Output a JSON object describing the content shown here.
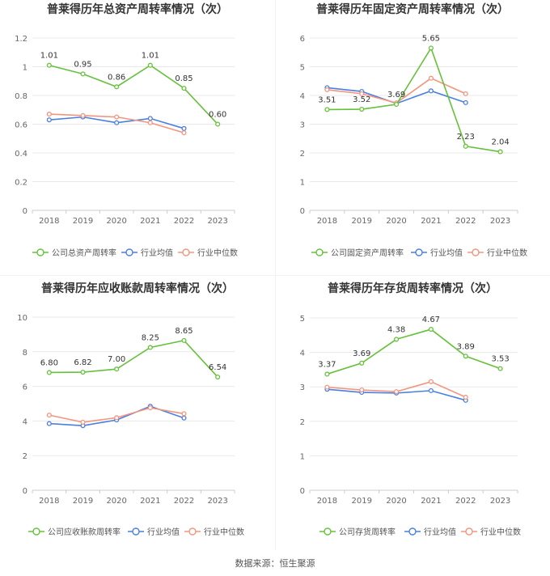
{
  "colors": {
    "company": "#66c13a",
    "average": "#4a7fe0",
    "median": "#f2957e",
    "axis_text": "#666666",
    "grid": "#e9e9e9",
    "title": "#333333"
  },
  "legend_labels": [
    "行业均值",
    "行业中位数"
  ],
  "source": "数据来源：恒生聚源",
  "chart_data": [
    {
      "type": "line",
      "title": "普莱得历年总资产周转率情况（次）",
      "categories": [
        "2018",
        "2019",
        "2020",
        "2021",
        "2022",
        "2023"
      ],
      "ylim": [
        0,
        1.2
      ],
      "yticks": [
        "0",
        "0.2",
        "0.4",
        "0.6",
        "0.8",
        "1",
        "1.2"
      ],
      "grid": true,
      "legend": "bottom",
      "series": [
        {
          "name": "公司总资产周转率",
          "values": [
            1.01,
            0.95,
            0.86,
            1.01,
            0.85,
            0.6
          ],
          "labels": [
            "1.01",
            "0.95",
            "0.86",
            "1.01",
            "0.85",
            "0.60"
          ]
        },
        {
          "name": "行业均值",
          "values": [
            0.63,
            0.65,
            0.61,
            0.64,
            0.57,
            null
          ]
        },
        {
          "name": "行业中位数",
          "values": [
            0.67,
            0.66,
            0.65,
            0.61,
            0.54,
            null
          ]
        }
      ]
    },
    {
      "type": "line",
      "title": "普莱得历年固定资产周转率情况（次）",
      "categories": [
        "2018",
        "2019",
        "2020",
        "2021",
        "2022",
        "2023"
      ],
      "ylim": [
        0,
        6
      ],
      "yticks": [
        "0",
        "1",
        "2",
        "3",
        "4",
        "5",
        "6"
      ],
      "grid": true,
      "legend": "bottom",
      "series": [
        {
          "name": "公司固定资产周转率",
          "values": [
            3.51,
            3.52,
            3.69,
            5.65,
            2.23,
            2.04
          ],
          "labels": [
            "3.51",
            "3.52",
            "3.69",
            "5.65",
            "2.23",
            "2.04"
          ]
        },
        {
          "name": "行业均值",
          "values": [
            4.27,
            4.14,
            3.72,
            4.16,
            3.75,
            null
          ]
        },
        {
          "name": "行业中位数",
          "values": [
            4.2,
            4.06,
            3.74,
            4.6,
            4.06,
            null
          ]
        }
      ]
    },
    {
      "type": "line",
      "title": "普莱得历年应收账款周转率情况（次）",
      "categories": [
        "2018",
        "2019",
        "2020",
        "2021",
        "2022",
        "2023"
      ],
      "ylim": [
        0,
        10
      ],
      "yticks": [
        "0",
        "2",
        "4",
        "6",
        "8",
        "10"
      ],
      "grid": true,
      "legend": "bottom",
      "series": [
        {
          "name": "公司应收账款周转率",
          "values": [
            6.8,
            6.82,
            7.0,
            8.25,
            8.65,
            6.54
          ],
          "labels": [
            "6.80",
            "6.82",
            "7.00",
            "8.25",
            "8.65",
            "6.54"
          ]
        },
        {
          "name": "行业均值",
          "values": [
            3.85,
            3.73,
            4.06,
            4.85,
            4.17,
            null
          ]
        },
        {
          "name": "行业中位数",
          "values": [
            4.34,
            3.93,
            4.19,
            4.76,
            4.42,
            null
          ]
        }
      ]
    },
    {
      "type": "line",
      "title": "普莱得历年存货周转率情况（次）",
      "categories": [
        "2018",
        "2019",
        "2020",
        "2021",
        "2022",
        "2023"
      ],
      "ylim": [
        0,
        5
      ],
      "yticks": [
        "0",
        "1",
        "2",
        "3",
        "4",
        "5"
      ],
      "grid": true,
      "legend": "bottom",
      "series": [
        {
          "name": "公司存货周转率",
          "values": [
            3.37,
            3.69,
            4.38,
            4.67,
            3.89,
            3.53
          ],
          "labels": [
            "3.37",
            "3.69",
            "4.38",
            "4.67",
            "3.89",
            "3.53"
          ]
        },
        {
          "name": "行业均值",
          "values": [
            2.93,
            2.84,
            2.82,
            2.89,
            2.61,
            null
          ]
        },
        {
          "name": "行业中位数",
          "values": [
            2.99,
            2.91,
            2.86,
            3.15,
            2.7,
            null
          ]
        }
      ]
    }
  ]
}
